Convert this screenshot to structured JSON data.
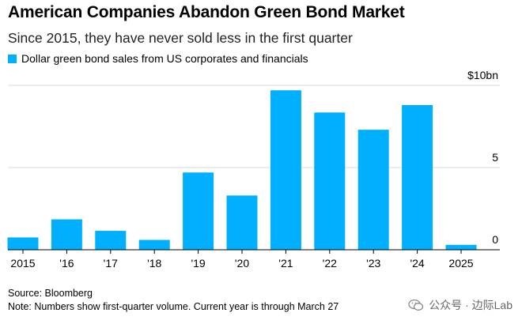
{
  "colors": {
    "bar": "#00b0ff",
    "grid": "#d9d9d9",
    "axis": "#000000"
  },
  "chart_data": {
    "type": "bar",
    "title": "American Companies Abandon Green Bond Market",
    "subtitle": "Since 2015, they have never sold less in the first quarter",
    "legend": [
      "Dollar green bond sales from US corporates and financials"
    ],
    "categories": [
      "2015",
      "'16",
      "'17",
      "'18",
      "'19",
      "'20",
      "'21",
      "'22",
      "'23",
      "'24",
      "2025"
    ],
    "values": [
      0.75,
      1.85,
      1.15,
      0.6,
      4.7,
      3.3,
      9.7,
      8.35,
      7.3,
      8.8,
      0.3
    ],
    "ylim": [
      0,
      10
    ],
    "yticks": [
      {
        "value": 0,
        "label": "0"
      },
      {
        "value": 5,
        "label": "5"
      },
      {
        "value": 10,
        "label": "$10bn"
      }
    ],
    "xlabel": "",
    "ylabel": ""
  },
  "footer": {
    "source": "Source: Bloomberg",
    "note": "Note: Numbers show first-quarter volume. Current year is through March 27"
  },
  "watermark": {
    "text": "公众号 · 边际Lab",
    "icon": "wechat-icon"
  }
}
